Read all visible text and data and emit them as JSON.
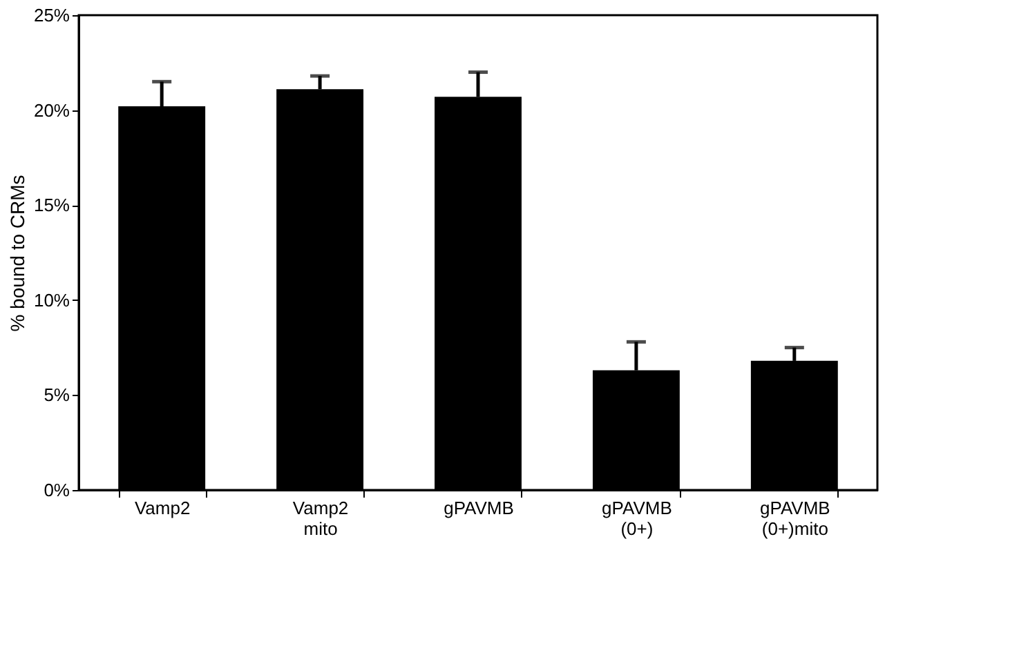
{
  "chart_data": {
    "type": "bar",
    "ylabel": "% bound to CRMs",
    "categories": [
      "Vamp2",
      "Vamp2\nmito",
      "gPAVMB",
      "gPAVMB\n(0+)",
      "gPAVMB\n(0+)mito"
    ],
    "values": [
      20.2,
      21.1,
      20.7,
      6.3,
      6.8
    ],
    "errors": [
      [
        20.2,
        21.5
      ],
      [
        21.1,
        21.8
      ],
      [
        20.7,
        22.0
      ],
      [
        6.3,
        7.8
      ],
      [
        6.8,
        7.5
      ]
    ],
    "color": "#000000",
    "ylim": [
      0,
      25
    ],
    "yticks": [
      {
        "value": 0,
        "label": "0%"
      },
      {
        "value": 5,
        "label": "5%"
      },
      {
        "value": 10,
        "label": "10%"
      },
      {
        "value": 15,
        "label": "15%"
      },
      {
        "value": 20,
        "label": "20%"
      },
      {
        "value": 25,
        "label": "25%"
      }
    ],
    "grid": false
  }
}
